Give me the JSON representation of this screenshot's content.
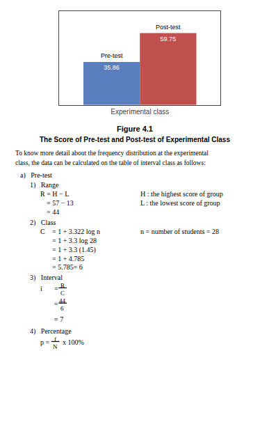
{
  "chart_data": {
    "type": "bar",
    "title": "Figure 4.1",
    "subtitle": "The Score of Pre-test and Post-test of Experimental Class",
    "categories": [
      "Experimental class"
    ],
    "series": [
      {
        "name": "Pre-test",
        "color": "#5B7FBE",
        "values": [
          35.86
        ]
      },
      {
        "name": "Post-test",
        "color": "#C0504D",
        "values": [
          59.75
        ]
      }
    ],
    "ylim": [
      0,
      78
    ],
    "data_labels": true,
    "tick_labels": "x",
    "grid": false,
    "annotations": [
      "To know more detail about the frequency distribution at the experimental",
      "class, the data can be calculated on the table of interval class as follows:",
      "a)   Pre-test",
      "1)   Range",
      "R = H − L",
      "H : the highest score of group",
      "= 57 − 13",
      "L : the lowest score of group",
      "= 44",
      "2)   Class",
      "C",
      "= 1 + 3.322 log n",
      "n = number of students = 28",
      "= 1 + 3.3 log 28",
      "= 1 + 3.3 (1.45)",
      "= 1 + 4.785",
      "= 5.785= 6",
      "3)   Interval",
      "i",
      "=",
      "R",
      "C",
      "=",
      "44",
      "6",
      "= 7",
      "4)   Percentage",
      "p =",
      "f",
      "N",
      "x 100%"
    ]
  }
}
